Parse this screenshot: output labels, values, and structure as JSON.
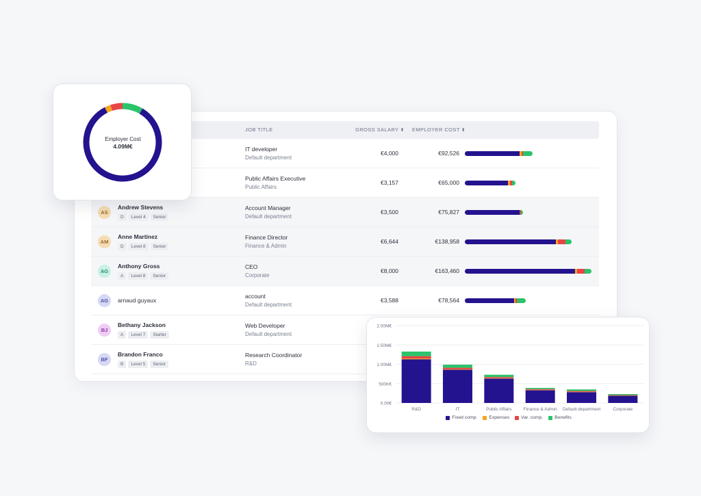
{
  "colors": {
    "fixed": "#24138f",
    "expenses": "#f5a623",
    "var": "#e84545",
    "benefits": "#2cc36b"
  },
  "table": {
    "headers": {
      "job_title": "JOB TITLE",
      "gross_salary": "GROSS SALARY",
      "employer_cost": "EMPLOYER COST",
      "sort_icon": "⬍"
    },
    "rows": [
      {
        "initials": "",
        "name": "",
        "tags": [],
        "job": "IT developer",
        "dept": "Default department",
        "gross": "€4,000",
        "cost": "€92,526",
        "bar": [
          80,
          3,
          2,
          14
        ],
        "avatar_bg": "",
        "avatar_fg": ""
      },
      {
        "initials": "",
        "name": "",
        "tags": [],
        "job": "Public Affairs Executive",
        "dept": "Public Affairs",
        "gross": "€3,157",
        "cost": "€65,000",
        "bar": [
          63,
          3,
          3,
          5
        ],
        "avatar_bg": "",
        "avatar_fg": ""
      },
      {
        "initials": "AS",
        "name": "Andrew Stevens",
        "tags": [
          "D",
          "Level 4",
          "Senior"
        ],
        "job": "Account Manager",
        "dept": "Default department",
        "gross": "€3,500",
        "cost": "€75,827",
        "bar": [
          80,
          0,
          2,
          3
        ],
        "avatar_bg": "#f5dcb4",
        "avatar_fg": "#9b6b2a"
      },
      {
        "initials": "AM",
        "name": "Anne Martinez",
        "tags": [
          "D",
          "Level 8",
          "Senior"
        ],
        "job": "Finance Director",
        "dept": "Finance & Admin",
        "gross": "€6,644",
        "cost": "€138,958",
        "bar": [
          133,
          3,
          11,
          9
        ],
        "avatar_bg": "#f5dcb4",
        "avatar_fg": "#9b6b2a"
      },
      {
        "initials": "AG",
        "name": "Anthony Gross",
        "tags": [
          "A",
          "Level 8",
          "Senior"
        ],
        "job": "CEO",
        "dept": "Corporate",
        "gross": "€8,000",
        "cost": "€163,460",
        "bar": [
          161,
          3,
          11,
          10
        ],
        "avatar_bg": "#c8f0e6",
        "avatar_fg": "#2a8a70"
      },
      {
        "initials": "AG",
        "name": "arnaud guyaux",
        "tags": [],
        "job": "account",
        "dept": "Default department",
        "gross": "€3,588",
        "cost": "€78,564",
        "bar": [
          72,
          2,
          2,
          13
        ],
        "avatar_bg": "#d6d8f5",
        "avatar_fg": "#4b4fa8"
      },
      {
        "initials": "BJ",
        "name": "Bethany Jackson",
        "tags": [
          "A",
          "Level 7",
          "Starter"
        ],
        "job": "Web Developer",
        "dept": "Default department",
        "gross": "",
        "cost": "",
        "bar": [],
        "avatar_bg": "#f0cdf5",
        "avatar_fg": "#8a3aa0"
      },
      {
        "initials": "BF",
        "name": "Brandon Franco",
        "tags": [
          "B",
          "Level 5",
          "Senior"
        ],
        "job": "Research Coordinator",
        "dept": "R&D",
        "gross": "",
        "cost": "",
        "bar": [],
        "avatar_bg": "#d6d8f5",
        "avatar_fg": "#4b4fa8"
      }
    ]
  },
  "donut": {
    "title": "Employer Cost",
    "value": "4.09M€",
    "fractions": {
      "fixed": 0.84,
      "expenses": 0.025,
      "var": 0.05,
      "benefits": 0.085
    }
  },
  "chart_data": {
    "type": "bar",
    "stacked": true,
    "categories": [
      "R&D",
      "IT",
      "Public Affairs",
      "Finance & Admin",
      "Default department",
      "Corporate"
    ],
    "series": [
      {
        "name": "Fixed comp.",
        "key": "fixed",
        "values": [
          1.13,
          0.86,
          0.63,
          0.33,
          0.28,
          0.19
        ]
      },
      {
        "name": "Expenses",
        "key": "expenses",
        "values": [
          0.02,
          0.01,
          0.01,
          0.01,
          0.01,
          0.005
        ]
      },
      {
        "name": "Var. comp.",
        "key": "var",
        "values": [
          0.06,
          0.04,
          0.03,
          0.02,
          0.02,
          0.01
        ]
      },
      {
        "name": "Benefits",
        "key": "benefits",
        "values": [
          0.12,
          0.08,
          0.06,
          0.03,
          0.04,
          0.025
        ]
      }
    ],
    "y_ticks": [
      "0.00€",
      "500K€",
      "1.00M€",
      "1.50M€",
      "2.00M€"
    ],
    "y_tick_values": [
      0,
      0.5,
      1.0,
      1.5,
      2.0
    ],
    "ylim": [
      0,
      2.0
    ],
    "title": "",
    "xlabel": "",
    "ylabel": "",
    "legend": "bottom"
  }
}
